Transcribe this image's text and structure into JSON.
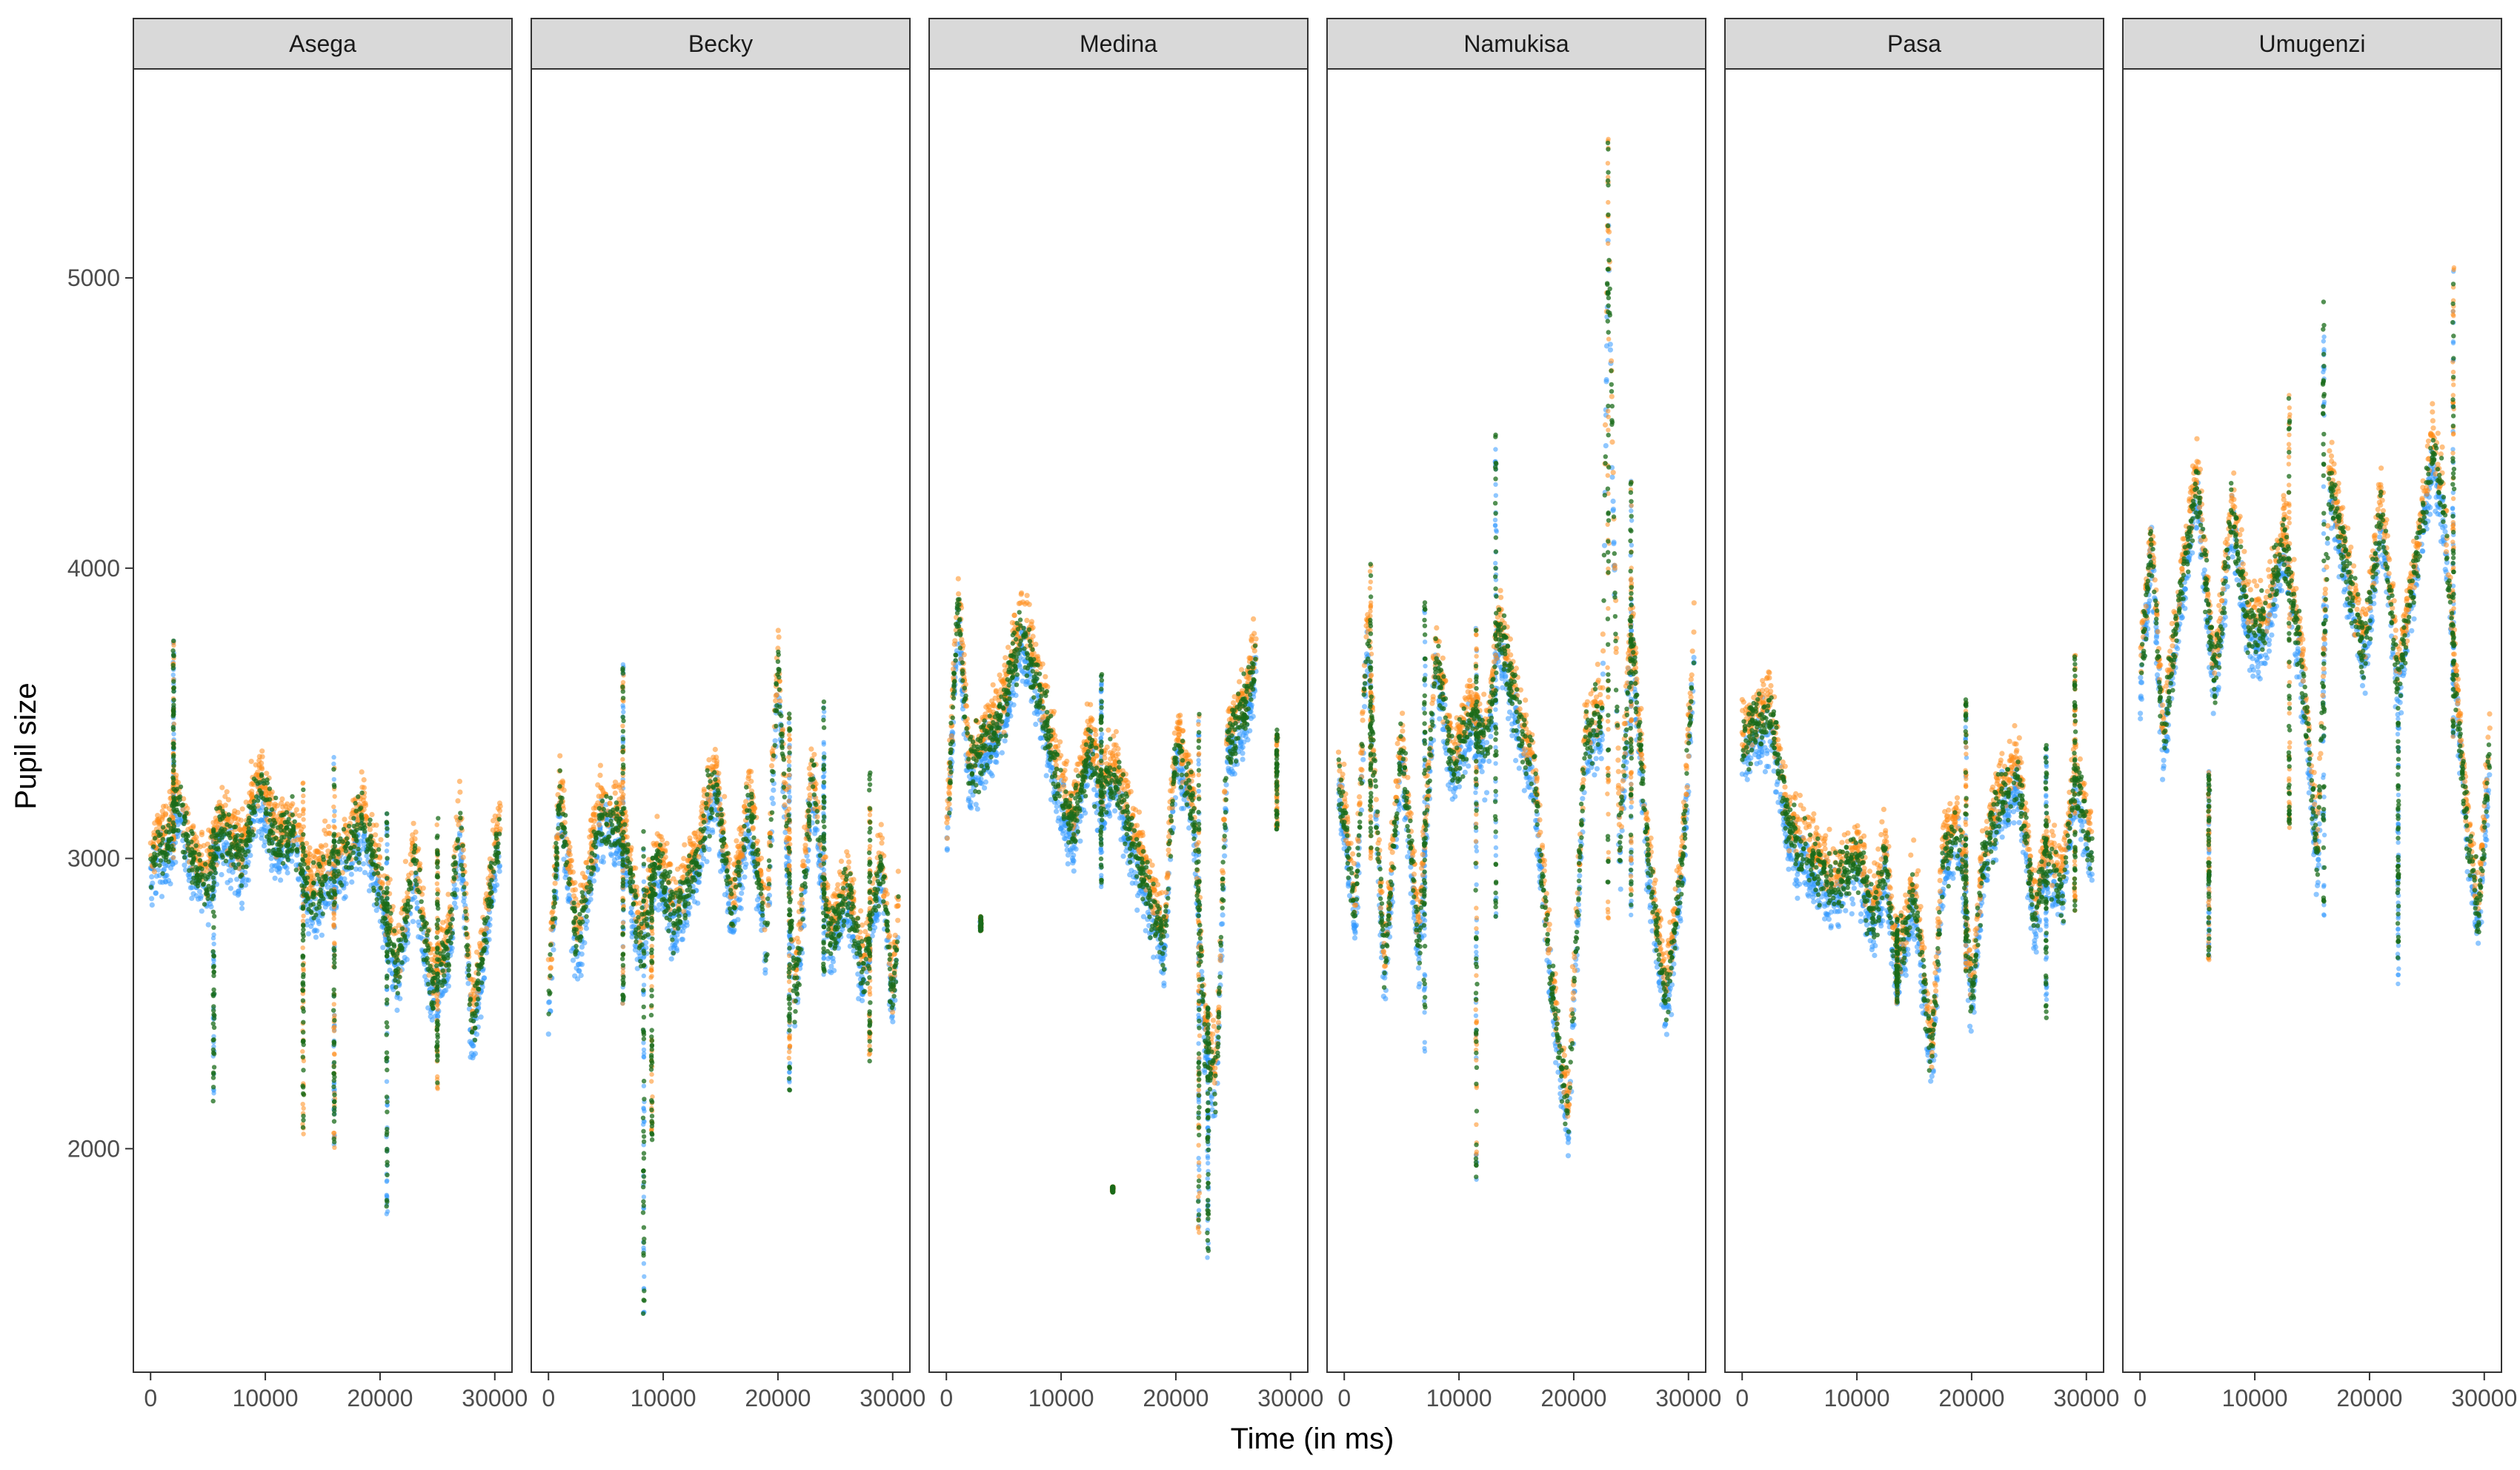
{
  "chart_data": {
    "type": "scatter",
    "xlabel": "Time (in ms)",
    "ylabel": "Pupil size",
    "xlim": [
      -1500,
      31500
    ],
    "ylim": [
      1230,
      5720
    ],
    "x_ticks": [
      0,
      10000,
      20000,
      30000
    ],
    "y_ticks": [
      2000,
      3000,
      4000,
      5000
    ],
    "grid": false,
    "legend": "none",
    "series_colors": [
      "#3399FF",
      "#FF8C1A",
      "#1A6B1A"
    ],
    "panels": [
      {
        "name": "Asega",
        "trend": [
          [
            0,
            3000
          ],
          [
            1500,
            3050
          ],
          [
            2500,
            3200
          ],
          [
            3500,
            3000
          ],
          [
            5000,
            2900
          ],
          [
            6000,
            3100
          ],
          [
            8000,
            3000
          ],
          [
            9500,
            3250
          ],
          [
            11000,
            3050
          ],
          [
            12500,
            3100
          ],
          [
            14000,
            2850
          ],
          [
            15500,
            2950
          ],
          [
            17000,
            3000
          ],
          [
            18500,
            3150
          ],
          [
            20000,
            2900
          ],
          [
            21500,
            2600
          ],
          [
            23000,
            3000
          ],
          [
            24500,
            2550
          ],
          [
            26000,
            2700
          ],
          [
            27000,
            3150
          ],
          [
            28000,
            2400
          ],
          [
            30000,
            3000
          ],
          [
            30500,
            3100
          ]
        ],
        "xmax": 30500,
        "spikes": [
          [
            2000,
            3000,
            3750
          ],
          [
            5500,
            2150,
            3100
          ],
          [
            13300,
            2050,
            3300
          ],
          [
            16000,
            2000,
            3350
          ],
          [
            20600,
            1770,
            3200
          ],
          [
            25000,
            2200,
            3150
          ]
        ]
      },
      {
        "name": "Becky",
        "trend": [
          [
            0,
            2500
          ],
          [
            1000,
            3200
          ],
          [
            2500,
            2700
          ],
          [
            4500,
            3150
          ],
          [
            6500,
            3100
          ],
          [
            8000,
            2700
          ],
          [
            9500,
            3000
          ],
          [
            11000,
            2800
          ],
          [
            13000,
            3000
          ],
          [
            14500,
            3300
          ],
          [
            16000,
            2800
          ],
          [
            17500,
            3200
          ],
          [
            19000,
            2700
          ],
          [
            20000,
            3700
          ],
          [
            21500,
            2500
          ],
          [
            23000,
            3300
          ],
          [
            24500,
            2700
          ],
          [
            26000,
            2900
          ],
          [
            27500,
            2600
          ],
          [
            29000,
            3000
          ],
          [
            30000,
            2500
          ],
          [
            30500,
            2800
          ]
        ],
        "xmax": 30500,
        "spikes": [
          [
            6500,
            2500,
            3700
          ],
          [
            8300,
            1430,
            3100
          ],
          [
            9000,
            2000,
            3000
          ],
          [
            21000,
            2200,
            3500
          ],
          [
            24000,
            2600,
            3550
          ],
          [
            28000,
            2300,
            3300
          ]
        ]
      },
      {
        "name": "Medina",
        "trend": [
          [
            0,
            3000
          ],
          [
            1000,
            3900
          ],
          [
            2000,
            3300
          ],
          [
            3500,
            3400
          ],
          [
            5000,
            3500
          ],
          [
            6500,
            3800
          ],
          [
            8000,
            3600
          ],
          [
            9500,
            3300
          ],
          [
            11000,
            3100
          ],
          [
            12500,
            3400
          ],
          [
            13500,
            3200
          ],
          [
            14500,
            3300
          ],
          [
            19000,
            2700
          ],
          [
            20000,
            3400
          ],
          [
            21500,
            3200
          ],
          [
            22500,
            2400
          ],
          [
            23500,
            2200
          ],
          [
            24500,
            3400
          ],
          [
            26000,
            3500
          ],
          [
            27000,
            3700
          ]
        ],
        "xmax": 27000,
        "spikes": [
          [
            3000,
            2750,
            2800
          ],
          [
            13500,
            2900,
            3650
          ],
          [
            14500,
            1850,
            1870
          ],
          [
            22000,
            1700,
            3500
          ],
          [
            22800,
            1600,
            2500
          ],
          [
            28800,
            3100,
            3450
          ]
        ]
      },
      {
        "name": "Namukisa",
        "trend": [
          [
            -500,
            3300
          ],
          [
            1000,
            2800
          ],
          [
            2000,
            3800
          ],
          [
            3500,
            2600
          ],
          [
            5000,
            3400
          ],
          [
            6500,
            2700
          ],
          [
            8000,
            3700
          ],
          [
            9500,
            3300
          ],
          [
            11000,
            3500
          ],
          [
            12500,
            3400
          ],
          [
            13500,
            3800
          ],
          [
            15000,
            3500
          ],
          [
            16500,
            3300
          ],
          [
            18000,
            2600
          ],
          [
            19500,
            2100
          ],
          [
            21000,
            3400
          ],
          [
            22500,
            3500
          ],
          [
            23000,
            5250
          ],
          [
            24000,
            3000
          ],
          [
            25000,
            3800
          ],
          [
            26500,
            3000
          ],
          [
            28000,
            2500
          ],
          [
            29500,
            3000
          ],
          [
            30500,
            3750
          ]
        ],
        "xmax": 30500,
        "spikes": [
          [
            11500,
            1880,
            3800
          ],
          [
            13200,
            2800,
            4470
          ],
          [
            23000,
            2700,
            5480
          ],
          [
            25000,
            2800,
            4300
          ],
          [
            7000,
            2300,
            3900
          ],
          [
            2300,
            3000,
            4030
          ]
        ]
      },
      {
        "name": "Pasa",
        "trend": [
          [
            0,
            3400
          ],
          [
            2500,
            3500
          ],
          [
            4000,
            3100
          ],
          [
            6000,
            3000
          ],
          [
            8000,
            2900
          ],
          [
            10000,
            3000
          ],
          [
            11500,
            2800
          ],
          [
            12500,
            3000
          ],
          [
            13500,
            2600
          ],
          [
            15000,
            2900
          ],
          [
            16500,
            2300
          ],
          [
            17500,
            3000
          ],
          [
            19000,
            3100
          ],
          [
            20000,
            2500
          ],
          [
            21000,
            3000
          ],
          [
            22500,
            3200
          ],
          [
            24000,
            3300
          ],
          [
            25500,
            2800
          ],
          [
            26500,
            3000
          ],
          [
            28000,
            2900
          ],
          [
            29000,
            3300
          ],
          [
            30500,
            3000
          ]
        ],
        "xmax": 30500,
        "spikes": [
          [
            19500,
            2600,
            3550
          ],
          [
            26500,
            2450,
            3400
          ],
          [
            29000,
            2800,
            3700
          ],
          [
            13500,
            2500,
            2800
          ]
        ]
      },
      {
        "name": "Umugenzi",
        "trend": [
          [
            0,
            3600
          ],
          [
            1000,
            4100
          ],
          [
            2000,
            3400
          ],
          [
            3500,
            3900
          ],
          [
            5000,
            4300
          ],
          [
            6500,
            3600
          ],
          [
            8000,
            4200
          ],
          [
            9500,
            3800
          ],
          [
            11000,
            3800
          ],
          [
            12500,
            4100
          ],
          [
            14000,
            3700
          ],
          [
            15500,
            3000
          ],
          [
            16500,
            4300
          ],
          [
            18000,
            4000
          ],
          [
            19500,
            3700
          ],
          [
            21000,
            4200
          ],
          [
            22500,
            3600
          ],
          [
            24000,
            4000
          ],
          [
            25500,
            4400
          ],
          [
            26500,
            4200
          ],
          [
            27500,
            3600
          ],
          [
            28500,
            3100
          ],
          [
            29500,
            2800
          ],
          [
            30500,
            3400
          ]
        ],
        "xmax": 30500,
        "spikes": [
          [
            27300,
            3400,
            5050
          ],
          [
            16000,
            2800,
            5000
          ],
          [
            13000,
            3100,
            4600
          ],
          [
            6000,
            2650,
            3300
          ],
          [
            22500,
            2550,
            3500
          ]
        ]
      }
    ]
  }
}
